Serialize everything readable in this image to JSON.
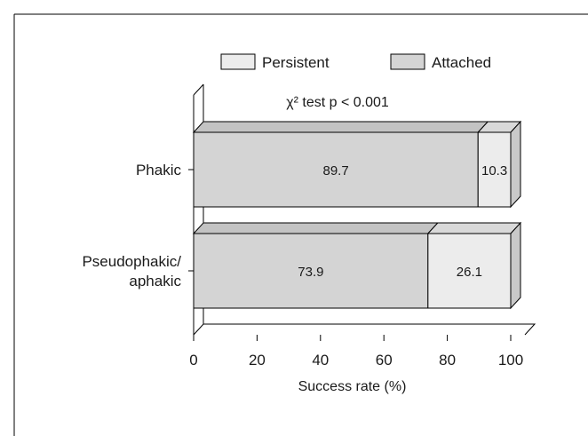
{
  "chart_data": {
    "type": "bar",
    "orientation": "horizontal",
    "stacked": true,
    "style": "3d",
    "categories": [
      [
        "Phakic"
      ],
      [
        "Pseudophakic/",
        "aphakic"
      ]
    ],
    "series": [
      {
        "name": "Attached",
        "values": [
          89.7,
          73.9
        ],
        "color": "#d4d4d4"
      },
      {
        "name": "Persistent",
        "values": [
          10.3,
          26.1
        ],
        "color": "#ececec"
      }
    ],
    "data_labels": [
      [
        "89.7",
        "10.3"
      ],
      [
        "73.9",
        "26.1"
      ]
    ],
    "annotation": "χ² test p < 0.001",
    "title": "",
    "xlabel": "Success rate (%)",
    "ylabel": "",
    "xlim": [
      0,
      100
    ],
    "xticks": [
      0,
      20,
      40,
      60,
      80,
      100
    ],
    "legend": {
      "placement": "top",
      "entries": [
        {
          "name": "Persistent",
          "color": "#ececec"
        },
        {
          "name": "Attached",
          "color": "#d4d4d4"
        }
      ]
    },
    "grid": false
  }
}
